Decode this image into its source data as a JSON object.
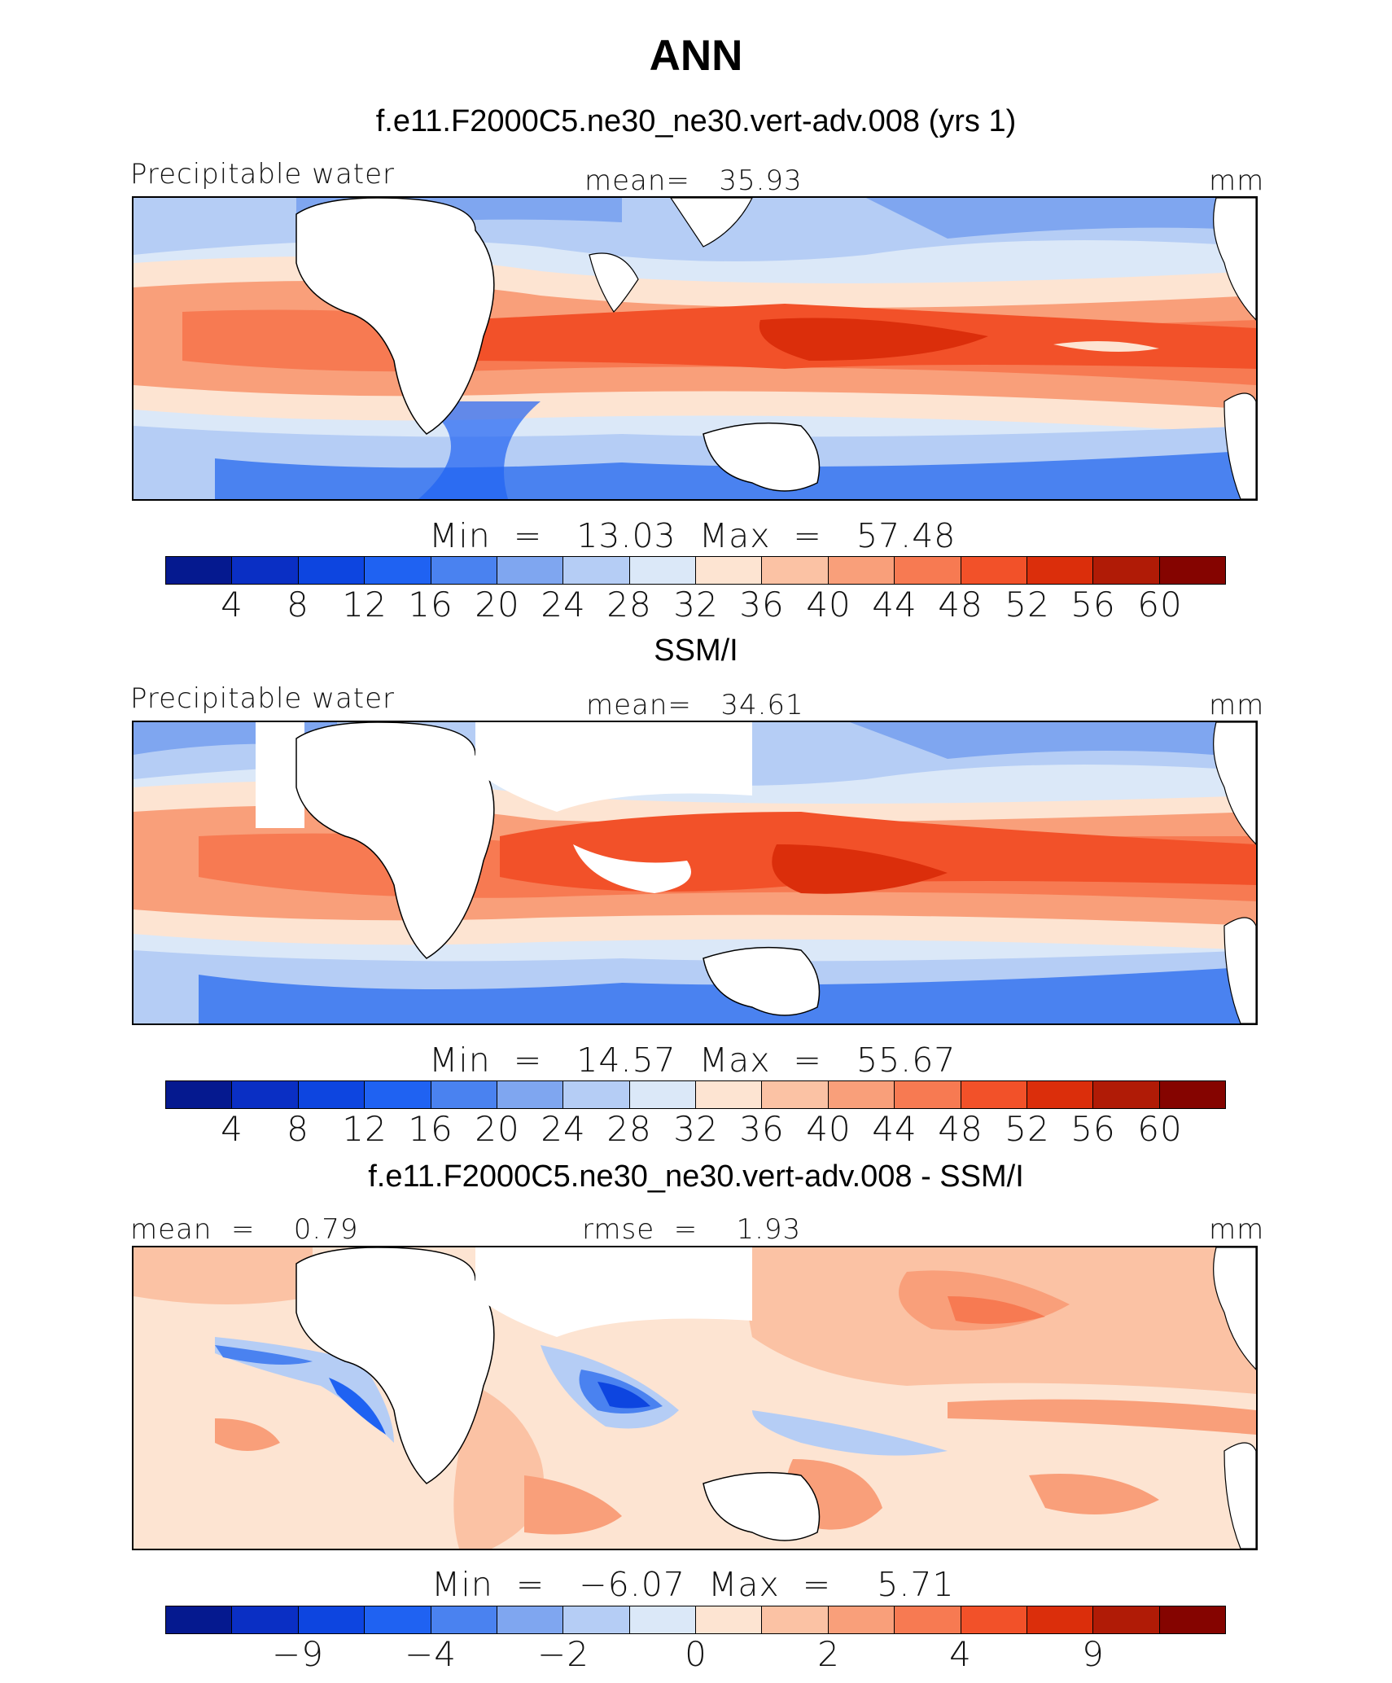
{
  "title": "ANN",
  "palette": [
    "#05198f",
    "#0a2fc4",
    "#0d45e0",
    "#1f62f2",
    "#4a82f0",
    "#7fa6f0",
    "#b5cdf5",
    "#dbe8f8",
    "#fde4d2",
    "#fbc2a4",
    "#f99f7a",
    "#f77a52",
    "#f25129",
    "#db2e0b",
    "#b01b06",
    "#850400"
  ],
  "colors": {
    "deep_blue": "#0a2fc4",
    "mid_blue": "#4a82f0",
    "light_blue": "#b5cdf5",
    "pale_red": "#fde4d2",
    "light_red": "#f99f7a",
    "mid_red": "#f25129",
    "dark_red": "#db2e0b"
  },
  "panels": [
    {
      "id": "model",
      "title": "f.e11.F2000C5.ne30_ne30.vert-adv.008 (yrs 1)",
      "left_label": "Precipitable water",
      "center_label": "mean=   35.93",
      "right_label": "mm",
      "minmax": "Min  =   13.03  Max  =   57.48",
      "ticks": [
        "4",
        "8",
        "12",
        "16",
        "20",
        "24",
        "28",
        "32",
        "36",
        "40",
        "44",
        "48",
        "52",
        "56",
        "60"
      ]
    },
    {
      "id": "obs",
      "title": "SSM/I",
      "left_label": "Precipitable water",
      "center_label": "mean=   34.61",
      "right_label": "mm",
      "minmax": "Min  =   14.57  Max  =   55.67",
      "ticks": [
        "4",
        "8",
        "12",
        "16",
        "20",
        "24",
        "28",
        "32",
        "36",
        "40",
        "44",
        "48",
        "52",
        "56",
        "60"
      ]
    },
    {
      "id": "diff",
      "title": "f.e11.F2000C5.ne30_ne30.vert-adv.008 - SSM/I",
      "left_label": "mean  =    0.79",
      "center_label": "rmse  =    1.93",
      "right_label": "mm",
      "minmax": "Min  =   −6.07  Max  =    5.71",
      "ticks": [
        "−9",
        "−4",
        "−2",
        "0",
        "2",
        "4",
        "9"
      ]
    }
  ],
  "chart_data": [
    {
      "type": "heatmap",
      "title": "f.e11.F2000C5.ne30_ne30.vert-adv.008 (yrs 1)",
      "variable": "Precipitable water",
      "units": "mm",
      "mean": 35.93,
      "min": 13.03,
      "max": 57.48,
      "contour_levels": [
        4,
        8,
        12,
        16,
        20,
        24,
        28,
        32,
        36,
        40,
        44,
        48,
        52,
        56,
        60
      ]
    },
    {
      "type": "heatmap",
      "title": "SSM/I",
      "variable": "Precipitable water",
      "units": "mm",
      "mean": 34.61,
      "min": 14.57,
      "max": 55.67,
      "contour_levels": [
        4,
        8,
        12,
        16,
        20,
        24,
        28,
        32,
        36,
        40,
        44,
        48,
        52,
        56,
        60
      ]
    },
    {
      "type": "heatmap",
      "title": "f.e11.F2000C5.ne30_ne30.vert-adv.008 - SSM/I",
      "units": "mm",
      "mean": 0.79,
      "rmse": 1.93,
      "min": -6.07,
      "max": 5.71,
      "contour_levels": [
        -9,
        -4,
        -2,
        0,
        2,
        4,
        9
      ]
    }
  ]
}
